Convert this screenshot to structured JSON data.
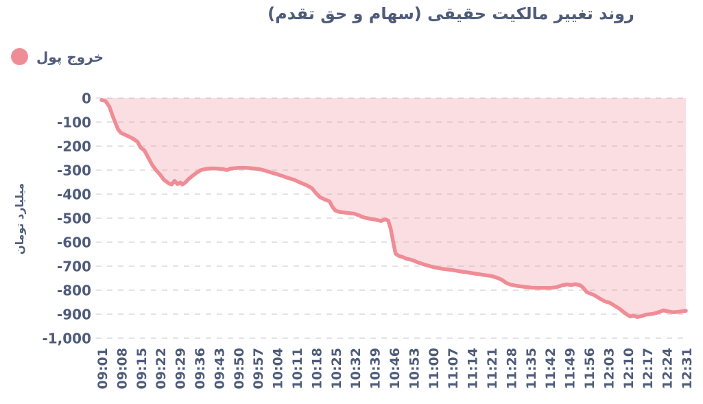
{
  "title": "روند تغییر مالکیت حقیقی (سهام و حق تقدم)",
  "legend": {
    "label": "خروج پول",
    "color": "#ef8d96"
  },
  "chart_data": {
    "type": "area",
    "title": "روند تغییر مالکیت حقیقی (سهام و حق تقدم)",
    "series_name": "خروج پول",
    "ylabel": "میلیارد تومان",
    "xlabel": "",
    "ylim": [
      -1000,
      0
    ],
    "grid": "dashed horizontal",
    "legend_position": "top-left",
    "line_color": "#ef8c96",
    "fill_color": "rgba(238,138,148,0.28)",
    "grid_color": "#e3e3e3",
    "text_color": "#4e5b7a",
    "y_ticks": [
      0,
      -100,
      -200,
      -300,
      -400,
      -500,
      -600,
      -700,
      -800,
      -900,
      -1000
    ],
    "y_tick_labels": [
      "0",
      "-100",
      "-200",
      "-300",
      "-400",
      "-500",
      "-600",
      "-700",
      "-800",
      "-900",
      "-1,000"
    ],
    "x_tick_labels": [
      "09:01",
      "09:08",
      "09:15",
      "09:22",
      "09:29",
      "09:36",
      "09:43",
      "09:50",
      "09:57",
      "10:04",
      "10:11",
      "10:18",
      "10:25",
      "10:32",
      "10:39",
      "10:46",
      "10:53",
      "11:00",
      "11:07",
      "11:14",
      "11:21",
      "11:28",
      "11:35",
      "11:42",
      "11:49",
      "11:56",
      "12:03",
      "12:10",
      "12:17",
      "12:24",
      "12:31"
    ],
    "points_unit": "x = index into x_tick_labels (fractional = between ticks), y = میلیارد تومان",
    "points": [
      [
        0,
        -8
      ],
      [
        0.2,
        -12
      ],
      [
        0.4,
        -35
      ],
      [
        0.6,
        -80
      ],
      [
        0.85,
        -130
      ],
      [
        1,
        -145
      ],
      [
        1.3,
        -156
      ],
      [
        1.6,
        -168
      ],
      [
        1.85,
        -182
      ],
      [
        2,
        -205
      ],
      [
        2.2,
        -218
      ],
      [
        2.4,
        -248
      ],
      [
        2.6,
        -278
      ],
      [
        2.8,
        -300
      ],
      [
        3,
        -318
      ],
      [
        3.2,
        -340
      ],
      [
        3.45,
        -355
      ],
      [
        3.6,
        -360
      ],
      [
        3.75,
        -345
      ],
      [
        3.9,
        -358
      ],
      [
        4.05,
        -352
      ],
      [
        4.15,
        -360
      ],
      [
        4.3,
        -352
      ],
      [
        4.5,
        -335
      ],
      [
        4.7,
        -322
      ],
      [
        4.9,
        -310
      ],
      [
        5.1,
        -300
      ],
      [
        5.4,
        -294
      ],
      [
        5.7,
        -293
      ],
      [
        6,
        -294
      ],
      [
        6.3,
        -297
      ],
      [
        6.45,
        -300
      ],
      [
        6.6,
        -294
      ],
      [
        7,
        -291
      ],
      [
        7.4,
        -291
      ],
      [
        7.8,
        -293
      ],
      [
        8.1,
        -296
      ],
      [
        8.4,
        -302
      ],
      [
        8.7,
        -310
      ],
      [
        9,
        -317
      ],
      [
        9.3,
        -325
      ],
      [
        9.6,
        -333
      ],
      [
        9.9,
        -341
      ],
      [
        10.2,
        -352
      ],
      [
        10.5,
        -362
      ],
      [
        10.8,
        -375
      ],
      [
        11,
        -395
      ],
      [
        11.2,
        -412
      ],
      [
        11.45,
        -422
      ],
      [
        11.7,
        -430
      ],
      [
        11.85,
        -452
      ],
      [
        12,
        -468
      ],
      [
        12.2,
        -474
      ],
      [
        12.6,
        -478
      ],
      [
        13,
        -482
      ],
      [
        13.2,
        -488
      ],
      [
        13.5,
        -498
      ],
      [
        13.8,
        -503
      ],
      [
        14.1,
        -507
      ],
      [
        14.35,
        -512
      ],
      [
        14.55,
        -505
      ],
      [
        14.72,
        -510
      ],
      [
        14.85,
        -545
      ],
      [
        15,
        -610
      ],
      [
        15.1,
        -648
      ],
      [
        15.25,
        -657
      ],
      [
        15.45,
        -662
      ],
      [
        15.65,
        -669
      ],
      [
        16,
        -676
      ],
      [
        16.25,
        -685
      ],
      [
        16.55,
        -693
      ],
      [
        16.85,
        -700
      ],
      [
        17.15,
        -706
      ],
      [
        17.5,
        -711
      ],
      [
        18,
        -716
      ],
      [
        18.5,
        -723
      ],
      [
        19,
        -729
      ],
      [
        19.5,
        -735
      ],
      [
        20,
        -741
      ],
      [
        20.3,
        -748
      ],
      [
        20.55,
        -757
      ],
      [
        20.8,
        -771
      ],
      [
        21,
        -777
      ],
      [
        21.3,
        -782
      ],
      [
        21.7,
        -786
      ],
      [
        22.1,
        -790
      ],
      [
        22.5,
        -791
      ],
      [
        23,
        -791
      ],
      [
        23.35,
        -788
      ],
      [
        23.65,
        -780
      ],
      [
        23.9,
        -776
      ],
      [
        24.1,
        -779
      ],
      [
        24.35,
        -775
      ],
      [
        24.6,
        -781
      ],
      [
        24.75,
        -792
      ],
      [
        24.9,
        -807
      ],
      [
        25.05,
        -813
      ],
      [
        25.3,
        -821
      ],
      [
        25.6,
        -836
      ],
      [
        25.85,
        -847
      ],
      [
        26.1,
        -853
      ],
      [
        26.35,
        -865
      ],
      [
        26.6,
        -878
      ],
      [
        26.8,
        -891
      ],
      [
        27,
        -903
      ],
      [
        27.15,
        -910
      ],
      [
        27.3,
        -906
      ],
      [
        27.5,
        -912
      ],
      [
        27.7,
        -909
      ],
      [
        27.95,
        -902
      ],
      [
        28.3,
        -899
      ],
      [
        28.6,
        -892
      ],
      [
        28.85,
        -884
      ],
      [
        29.05,
        -888
      ],
      [
        29.35,
        -892
      ],
      [
        29.65,
        -890
      ],
      [
        30,
        -886
      ]
    ]
  }
}
